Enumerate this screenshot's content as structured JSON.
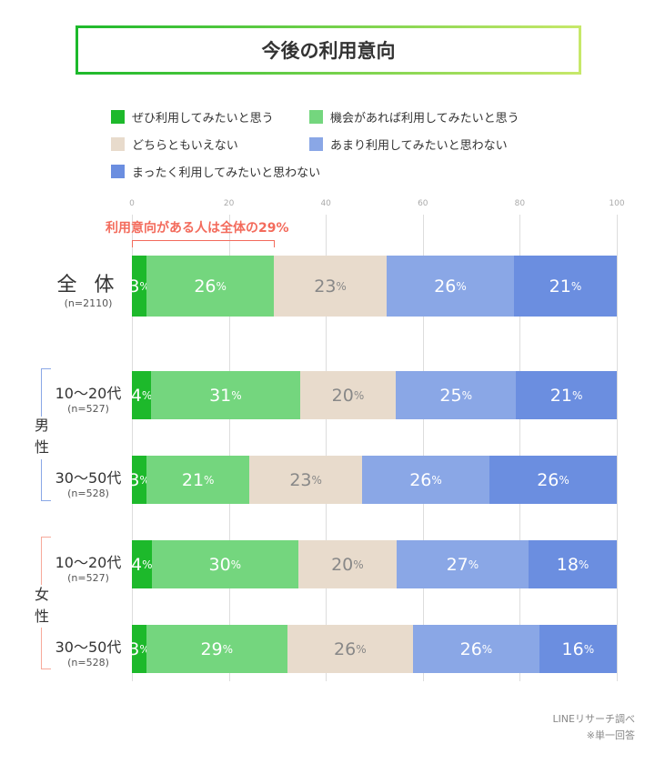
{
  "title": "今後の利用意向",
  "chart_data": {
    "type": "bar",
    "stacked": true,
    "orientation": "horizontal",
    "title": "今後の利用意向",
    "xlim": [
      0,
      100
    ],
    "xticks": [
      "0",
      "20",
      "40",
      "60",
      "80",
      "100"
    ],
    "grid": true,
    "legend_placement": "top",
    "categories": [
      {
        "label": "全 体",
        "n": "(n=2110)"
      },
      {
        "label": "10〜20代",
        "n": "(n=527)",
        "group": "男性"
      },
      {
        "label": "30〜50代",
        "n": "(n=528)",
        "group": "男性"
      },
      {
        "label": "10〜20代",
        "n": "(n=527)",
        "group": "女性"
      },
      {
        "label": "30〜50代",
        "n": "(n=528)",
        "group": "女性"
      }
    ],
    "series": [
      {
        "name": "ぜひ利用してみたいと思う",
        "color": "#1db92b",
        "values": [
          3,
          4,
          3,
          4,
          3
        ]
      },
      {
        "name": "機会があれば利用してみたいと思う",
        "color": "#74d67e",
        "values": [
          26,
          31,
          21,
          30,
          29
        ]
      },
      {
        "name": "どちらともいえない",
        "color": "#e8dbcc",
        "values": [
          23,
          20,
          23,
          20,
          26
        ]
      },
      {
        "name": "あまり利用してみたいと思わない",
        "color": "#8aa7e6",
        "values": [
          26,
          25,
          26,
          27,
          26
        ]
      },
      {
        "name": "まったく利用してみたいと思わない",
        "color": "#6b8ee0",
        "values": [
          21,
          21,
          26,
          18,
          16
        ]
      }
    ],
    "annotation": "利用意向がある人は全体の29%",
    "unit": "%"
  },
  "groups": [
    {
      "label": "男\n性",
      "color": "#8aa7e6"
    },
    {
      "label": "女\n性",
      "color": "#f7a99a"
    }
  ],
  "source": "LINEリサーチ調べ",
  "note": "※単一回答"
}
